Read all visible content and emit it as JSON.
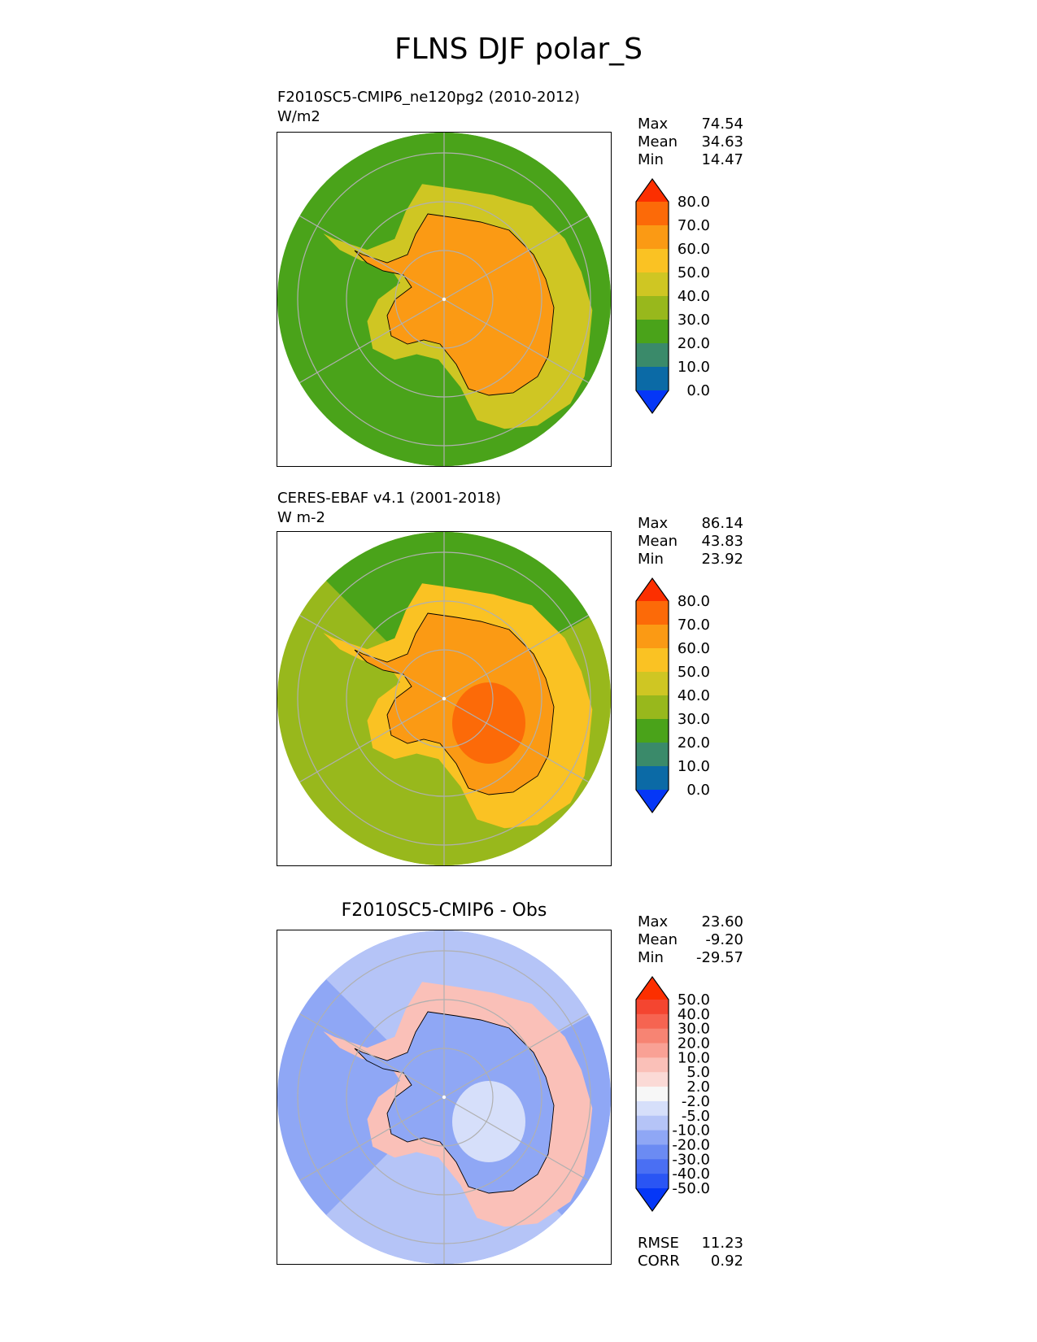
{
  "title": "FLNS DJF polar_S",
  "chart_data": [
    {
      "type": "heatmap",
      "projection": "south-polar-stereographic",
      "title_lines": [
        "F2010SC5-CMIP6_ne120pg2 (2010-2012)",
        "W/m2"
      ],
      "stats": {
        "Max": "74.54",
        "Mean": "34.63",
        "Min": "14.47"
      },
      "colorbar": {
        "extend": "both",
        "levels": [
          "0.0",
          "10.0",
          "20.0",
          "30.0",
          "40.0",
          "50.0",
          "60.0",
          "70.0",
          "80.0"
        ],
        "colors": [
          "#0537f7",
          "#0b6aa6",
          "#3a8a6a",
          "#4aa31a",
          "#98b81c",
          "#cfc623",
          "#fac223",
          "#fb9a14",
          "#fc6a08",
          "#fc2f00"
        ]
      },
      "field": {
        "ocean_north": 20,
        "ocean_west": 26,
        "ocean_south": 28,
        "ocean_east": 24,
        "coast_ring": 42,
        "interior": 62,
        "east_core": 64
      }
    },
    {
      "type": "heatmap",
      "projection": "south-polar-stereographic",
      "title_lines": [
        "CERES-EBAF v4.1 (2001-2018)",
        "W m-2"
      ],
      "stats": {
        "Max": "86.14",
        "Mean": "43.83",
        "Min": "23.92"
      },
      "colorbar": {
        "extend": "both",
        "levels": [
          "0.0",
          "10.0",
          "20.0",
          "30.0",
          "40.0",
          "50.0",
          "60.0",
          "70.0",
          "80.0"
        ],
        "colors": [
          "#0537f7",
          "#0b6aa6",
          "#3a8a6a",
          "#4aa31a",
          "#98b81c",
          "#cfc623",
          "#fac223",
          "#fb9a14",
          "#fc6a08",
          "#fc2f00"
        ]
      },
      "field": {
        "ocean_north": 29,
        "ocean_west": 36,
        "ocean_south": 33,
        "ocean_east": 38,
        "coast_ring": 55,
        "interior": 68,
        "east_core": 78
      }
    },
    {
      "type": "heatmap",
      "projection": "south-polar-stereographic",
      "title_lines": [
        "F2010SC5-CMIP6 - Obs"
      ],
      "stats": {
        "Max": "23.60",
        "Mean": "-9.20",
        "Min": "-29.57"
      },
      "footer_stats": {
        "RMSE": "11.23",
        "CORR": "0.92"
      },
      "colorbar": {
        "extend": "both",
        "levels": [
          "-50.0",
          "-40.0",
          "-30.0",
          "-20.0",
          "-10.0",
          "-5.0",
          "-2.0",
          "2.0",
          "5.0",
          "10.0",
          "20.0",
          "30.0",
          "40.0",
          "50.0"
        ],
        "colors": [
          "#0537f7",
          "#2a55f4",
          "#4a6ff3",
          "#6b8bf3",
          "#8fa7f5",
          "#b5c4f7",
          "#d6dffa",
          "#f7f7f7",
          "#fbdad6",
          "#fac0b8",
          "#f9a195",
          "#f78473",
          "#f66451",
          "#f44530",
          "#fc2f00"
        ]
      },
      "field": {
        "ocean_north": -8,
        "ocean_west": -12,
        "ocean_south": -9,
        "ocean_east": -12,
        "coast_ring": 6,
        "interior": -12,
        "east_core": -4
      }
    }
  ]
}
